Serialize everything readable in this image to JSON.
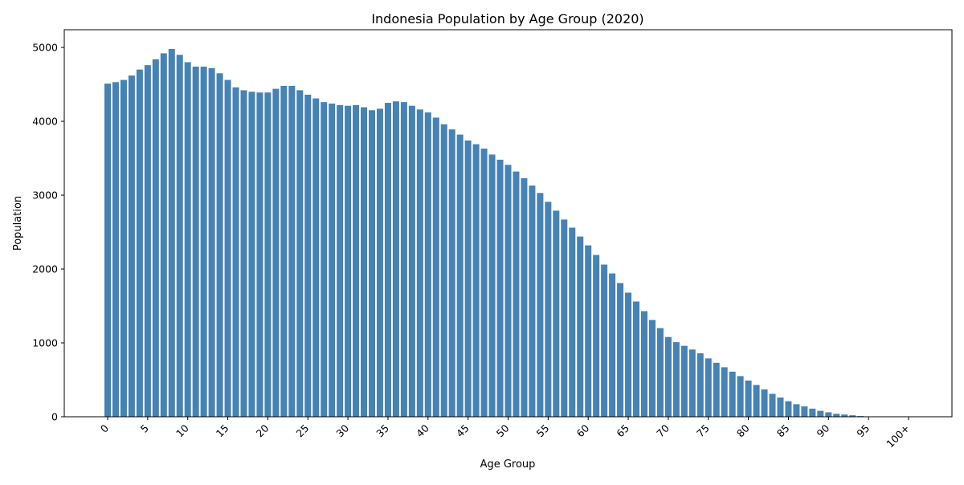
{
  "chart_data": {
    "type": "bar",
    "title": "Indonesia Population by Age Group (2020)",
    "xlabel": "Age Group",
    "ylabel": "Population",
    "ylim": [
      0,
      5240
    ],
    "yticks": [
      0,
      1000,
      2000,
      3000,
      4000,
      5000
    ],
    "grid": false,
    "bar_color": "#4682b4",
    "categories": [
      "0",
      "1",
      "2",
      "3",
      "4",
      "5",
      "6",
      "7",
      "8",
      "9",
      "10",
      "11",
      "12",
      "13",
      "14",
      "15",
      "16",
      "17",
      "18",
      "19",
      "20",
      "21",
      "22",
      "23",
      "24",
      "25",
      "26",
      "27",
      "28",
      "29",
      "30",
      "31",
      "32",
      "33",
      "34",
      "35",
      "36",
      "37",
      "38",
      "39",
      "40",
      "41",
      "42",
      "43",
      "44",
      "45",
      "46",
      "47",
      "48",
      "49",
      "50",
      "51",
      "52",
      "53",
      "54",
      "55",
      "56",
      "57",
      "58",
      "59",
      "60",
      "61",
      "62",
      "63",
      "64",
      "65",
      "66",
      "67",
      "68",
      "69",
      "70",
      "71",
      "72",
      "73",
      "74",
      "75",
      "76",
      "77",
      "78",
      "79",
      "80",
      "81",
      "82",
      "83",
      "84",
      "85",
      "86",
      "87",
      "88",
      "89",
      "90",
      "91",
      "92",
      "93",
      "94",
      "95",
      "96",
      "97",
      "98",
      "99",
      "100+"
    ],
    "tick_labels": [
      "0",
      "5",
      "10",
      "15",
      "20",
      "25",
      "30",
      "35",
      "40",
      "45",
      "50",
      "55",
      "60",
      "65",
      "70",
      "75",
      "80",
      "85",
      "90",
      "95",
      "100+"
    ],
    "values": [
      4510,
      4530,
      4560,
      4620,
      4700,
      4760,
      4840,
      4920,
      4980,
      4900,
      4800,
      4740,
      4740,
      4720,
      4650,
      4560,
      4460,
      4420,
      4400,
      4390,
      4390,
      4440,
      4480,
      4480,
      4420,
      4360,
      4310,
      4260,
      4240,
      4220,
      4210,
      4220,
      4190,
      4150,
      4170,
      4250,
      4270,
      4260,
      4210,
      4160,
      4120,
      4050,
      3960,
      3890,
      3820,
      3740,
      3690,
      3630,
      3550,
      3480,
      3410,
      3320,
      3230,
      3130,
      3030,
      2910,
      2790,
      2670,
      2560,
      2440,
      2320,
      2190,
      2060,
      1940,
      1810,
      1680,
      1560,
      1430,
      1310,
      1200,
      1080,
      1010,
      960,
      910,
      860,
      790,
      730,
      670,
      610,
      550,
      490,
      430,
      370,
      310,
      260,
      210,
      170,
      140,
      110,
      80,
      60,
      40,
      30,
      20,
      10,
      5,
      3,
      2,
      1,
      1,
      1
    ]
  }
}
